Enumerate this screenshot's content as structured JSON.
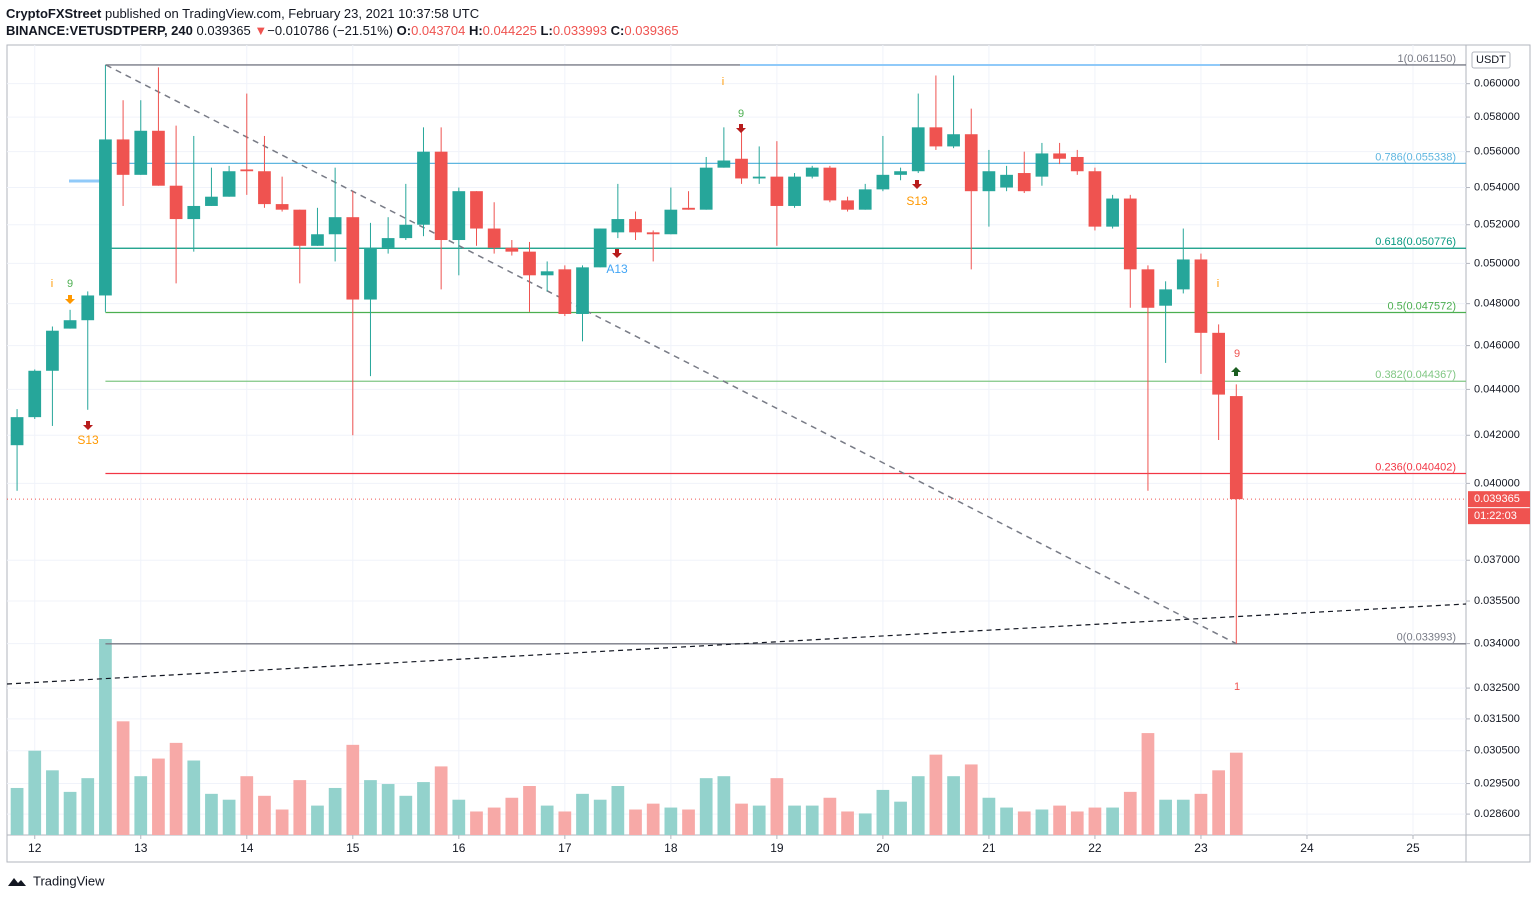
{
  "header": {
    "publisher": "CryptoFXStreet",
    "published_text": "published on TradingView.com, February 23, 2021 10:37:58 UTC",
    "symbol": "BINANCE:VETUSDTPERP, 240",
    "last": "0.039365",
    "arrow": "▼",
    "change": "−0.010786 (−21.51%)",
    "o_label": "O:",
    "o": "0.043704",
    "h_label": "H:",
    "h": "0.044225",
    "l_label": "L:",
    "l": "0.033993",
    "c_label": "C:",
    "c": "0.039365"
  },
  "footer": {
    "brand": "TradingView"
  },
  "chart_data": {
    "type": "candlestick",
    "log_scale": true,
    "grid": true,
    "up_color": "#26a69a",
    "down_color": "#ef5350",
    "up_volume_color": "#93d2cc",
    "down_volume_color": "#f7a9a7",
    "price_unit": "USDT",
    "last_price_label": "0.039365",
    "countdown": "01:22:03",
    "open": [
      0.04158,
      0.04278,
      0.04484,
      0.0468,
      0.0472,
      0.0484,
      0.0567,
      0.0547,
      0.0572,
      0.0541,
      0.0523,
      0.053,
      0.0535,
      0.055,
      0.0549,
      0.0531,
      0.0528,
      0.0509,
      0.0515,
      0.0524,
      0.0482,
      0.0508,
      0.0513,
      0.052,
      0.056,
      0.0512,
      0.0538,
      0.0518,
      0.0508,
      0.0506,
      0.0494,
      0.0497,
      0.0475,
      0.0498,
      0.0516,
      0.0523,
      0.0516,
      0.0515,
      0.0529,
      0.0528,
      0.0551,
      0.0556,
      0.0545,
      0.0546,
      0.053,
      0.0546,
      0.0551,
      0.0533,
      0.0528,
      0.0539,
      0.0547,
      0.0549,
      0.0574,
      0.0563,
      0.057,
      0.0538,
      0.054,
      0.0548,
      0.0546,
      0.0559,
      0.0557,
      0.0549,
      0.0519,
      0.0534,
      0.0497,
      0.0479,
      0.0487,
      0.0502,
      0.0466,
      0.043704
    ],
    "high": [
      0.04313,
      0.0449,
      0.0469,
      0.0477,
      0.0486,
      0.06115,
      0.059,
      0.059,
      0.061,
      0.0575,
      0.0569,
      0.0551,
      0.0552,
      0.0594,
      0.0569,
      0.0546,
      0.0528,
      0.0529,
      0.0551,
      0.0538,
      0.0521,
      0.0524,
      0.0542,
      0.0574,
      0.0574,
      0.054,
      0.0538,
      0.0532,
      0.0512,
      0.0511,
      0.0501,
      0.0499,
      0.0499,
      0.0518,
      0.0542,
      0.0527,
      0.0517,
      0.054,
      0.0538,
      0.0557,
      0.0574,
      0.0574,
      0.0563,
      0.0566,
      0.0548,
      0.0552,
      0.0552,
      0.0535,
      0.0542,
      0.0569,
      0.0551,
      0.0594,
      0.0605,
      0.0605,
      0.0585,
      0.0561,
      0.0552,
      0.056,
      0.0565,
      0.0565,
      0.0561,
      0.0551,
      0.0536,
      0.0536,
      0.0499,
      0.0491,
      0.0518,
      0.0505,
      0.047,
      0.044225
    ],
    "low": [
      0.0397,
      0.0427,
      0.0424,
      0.0468,
      0.0431,
      0.0476,
      0.053,
      0.0547,
      0.0541,
      0.049,
      0.0506,
      0.053,
      0.0535,
      0.0536,
      0.0529,
      0.0527,
      0.049,
      0.0509,
      0.0501,
      0.042,
      0.0446,
      0.0505,
      0.0512,
      0.0514,
      0.0487,
      0.0494,
      0.0509,
      0.0505,
      0.0504,
      0.0476,
      0.0486,
      0.0474,
      0.0462,
      0.0498,
      0.0513,
      0.0512,
      0.0501,
      0.0515,
      0.0528,
      0.0528,
      0.0551,
      0.0542,
      0.0542,
      0.0509,
      0.0529,
      0.0545,
      0.0532,
      0.0527,
      0.0528,
      0.0538,
      0.0544,
      0.0548,
      0.0561,
      0.0562,
      0.0497,
      0.0519,
      0.0538,
      0.0537,
      0.0541,
      0.0553,
      0.0547,
      0.0517,
      0.0518,
      0.0478,
      0.0397,
      0.0452,
      0.0485,
      0.0447,
      0.0418,
      0.033993
    ],
    "close": [
      0.04278,
      0.04484,
      0.0467,
      0.0472,
      0.0484,
      0.0567,
      0.0547,
      0.0572,
      0.0541,
      0.0523,
      0.053,
      0.0535,
      0.0549,
      0.0549,
      0.0531,
      0.0528,
      0.0509,
      0.0515,
      0.0524,
      0.0482,
      0.0508,
      0.0513,
      0.052,
      0.056,
      0.0512,
      0.0538,
      0.0518,
      0.0508,
      0.0506,
      0.0494,
      0.0496,
      0.0475,
      0.0498,
      0.0518,
      0.0523,
      0.0516,
      0.0515,
      0.0528,
      0.0528,
      0.0551,
      0.0555,
      0.0545,
      0.0546,
      0.053,
      0.0546,
      0.0551,
      0.0533,
      0.0528,
      0.0539,
      0.0547,
      0.0549,
      0.0574,
      0.0563,
      0.057,
      0.0538,
      0.0549,
      0.0547,
      0.0538,
      0.0559,
      0.0556,
      0.0549,
      0.0519,
      0.0534,
      0.0497,
      0.0478,
      0.0487,
      0.0502,
      0.0466,
      0.04377,
      0.039365
    ],
    "volume": [
      24,
      43,
      33,
      22,
      29,
      100,
      58,
      30,
      39,
      47,
      38,
      21,
      18,
      30,
      20,
      13,
      28,
      15,
      24,
      46,
      28,
      26,
      20,
      27,
      35,
      18,
      12,
      14,
      19,
      25,
      15,
      12,
      21,
      18,
      25,
      13,
      16,
      14,
      13,
      29,
      30,
      16,
      15,
      29,
      15,
      15,
      19,
      12,
      11,
      23,
      17,
      30,
      41,
      30,
      36,
      19,
      14,
      12,
      13,
      15,
      12,
      14,
      14,
      22,
      52,
      18,
      18,
      21,
      33,
      42
    ],
    "xlim": [
      -0.57,
      82
    ],
    "xticks": [
      {
        "value": 1,
        "label": "12"
      },
      {
        "value": 7,
        "label": "13"
      },
      {
        "value": 13,
        "label": "14"
      },
      {
        "value": 19,
        "label": "15"
      },
      {
        "value": 25,
        "label": "16"
      },
      {
        "value": 31,
        "label": "17"
      },
      {
        "value": 37,
        "label": "18"
      },
      {
        "value": 43,
        "label": "19"
      },
      {
        "value": 49,
        "label": "20"
      },
      {
        "value": 55,
        "label": "21"
      },
      {
        "value": 61,
        "label": "22"
      },
      {
        "value": 67,
        "label": "23"
      },
      {
        "value": 73,
        "label": "24"
      },
      {
        "value": 79,
        "label": "25"
      }
    ],
    "ylim": [
      0.028,
      0.0624
    ],
    "yticks": [
      {
        "value": 0.06,
        "label": "0.060000"
      },
      {
        "value": 0.058,
        "label": "0.058000"
      },
      {
        "value": 0.056,
        "label": "0.056000"
      },
      {
        "value": 0.054,
        "label": "0.054000"
      },
      {
        "value": 0.052,
        "label": "0.052000"
      },
      {
        "value": 0.05,
        "label": "0.050000"
      },
      {
        "value": 0.048,
        "label": "0.048000"
      },
      {
        "value": 0.046,
        "label": "0.046000"
      },
      {
        "value": 0.044,
        "label": "0.044000"
      },
      {
        "value": 0.042,
        "label": "0.042000"
      },
      {
        "value": 0.04,
        "label": "0.040000"
      },
      {
        "value": 0.037,
        "label": "0.037000"
      },
      {
        "value": 0.0355,
        "label": "0.035500"
      },
      {
        "value": 0.034,
        "label": "0.034000"
      },
      {
        "value": 0.0325,
        "label": "0.032500"
      },
      {
        "value": 0.0315,
        "label": "0.031500"
      },
      {
        "value": 0.0305,
        "label": "0.030500"
      },
      {
        "value": 0.0295,
        "label": "0.029500"
      },
      {
        "value": 0.0286,
        "label": "0.028600"
      }
    ],
    "fib_levels": [
      {
        "label": "1(0.061150)",
        "value": 0.06115,
        "color": "#787b86"
      },
      {
        "label": "0.786(0.055338)",
        "value": 0.055338,
        "color": "#5fb6e0"
      },
      {
        "label": "0.618(0.050776)",
        "value": 0.050776,
        "color": "#089981"
      },
      {
        "label": "0.5(0.047572)",
        "value": 0.047572,
        "color": "#4caf50"
      },
      {
        "label": "0.382(0.044367)",
        "value": 0.044367,
        "color": "#81c784"
      },
      {
        "label": "0.236(0.040402)",
        "value": 0.040402,
        "color": "#f23645"
      },
      {
        "label": "0(0.033993)",
        "value": 0.033993,
        "color": "#787b86"
      }
    ],
    "annotations": [
      {
        "text": "i",
        "color": "#ff9800"
      },
      {
        "text": "9",
        "color": "#4caf50"
      },
      {
        "text": "S13",
        "color": "#ff9800"
      },
      {
        "text": "A13",
        "color": "#42a5f5"
      },
      {
        "text": "i",
        "color": "#ff9800"
      },
      {
        "text": "9",
        "color": "#4caf50"
      },
      {
        "text": "S13",
        "color": "#ff9800"
      },
      {
        "text": "i",
        "color": "#ff9800"
      },
      {
        "text": "9",
        "color": "#ef5350"
      },
      {
        "text": "1",
        "color": "#ef5350"
      }
    ]
  }
}
